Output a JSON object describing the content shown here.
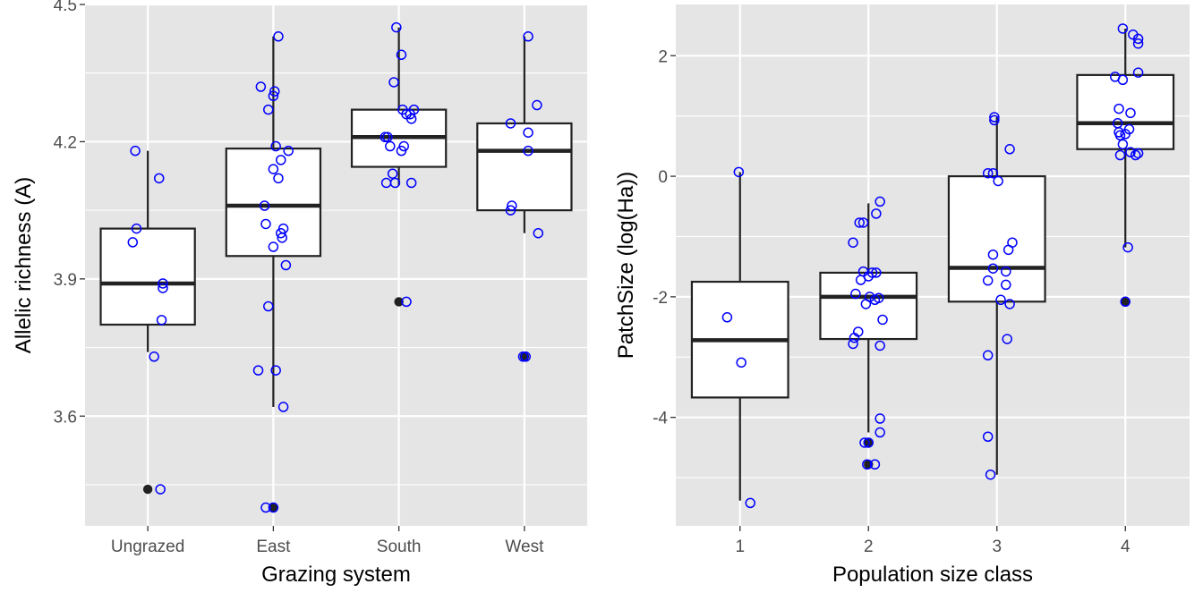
{
  "chart_data": [
    {
      "type": "box",
      "xlabel": "Grazing system",
      "ylabel": "Allelic richness (A)",
      "categories": [
        "Ungrazed",
        "East",
        "South",
        "West"
      ],
      "ylim": [
        3.36,
        4.5
      ],
      "yticks": [
        3.6,
        3.9,
        4.2,
        4.5
      ],
      "yticklabels": [
        "3.6",
        "3.9",
        "4.2",
        "4.5"
      ],
      "grid": true,
      "boxes": [
        {
          "category": "Ungrazed",
          "q1": 3.8,
          "median": 3.89,
          "q3": 4.01,
          "whisker_low": 3.74,
          "whisker_high": 4.18,
          "outliers": [
            3.44
          ]
        },
        {
          "category": "East",
          "q1": 3.95,
          "median": 4.06,
          "q3": 4.185,
          "whisker_low": 3.62,
          "whisker_high": 4.43,
          "outliers": [
            3.4
          ]
        },
        {
          "category": "South",
          "q1": 4.145,
          "median": 4.21,
          "q3": 4.27,
          "whisker_low": 4.105,
          "whisker_high": 4.45,
          "outliers": [
            3.85
          ]
        },
        {
          "category": "West",
          "q1": 4.05,
          "median": 4.18,
          "q3": 4.24,
          "whisker_low": 4.0,
          "whisker_high": 4.43,
          "outliers": [
            3.73
          ]
        }
      ],
      "points": [
        {
          "category": "Ungrazed",
          "values": [
            4.18,
            4.12,
            4.01,
            3.98,
            3.89,
            3.88,
            3.81,
            3.73,
            3.44
          ],
          "jitter": [
            -0.1,
            0.09,
            -0.09,
            -0.12,
            0.12,
            0.12,
            0.11,
            0.05,
            0.1
          ]
        },
        {
          "category": "East",
          "values": [
            4.43,
            4.32,
            4.31,
            4.3,
            4.27,
            4.19,
            4.18,
            4.16,
            4.14,
            4.12,
            4.06,
            4.02,
            4.01,
            4.0,
            3.99,
            3.97,
            3.93,
            3.84,
            3.7,
            3.7,
            3.62,
            3.4,
            3.4
          ],
          "jitter": [
            0.04,
            -0.1,
            0.01,
            0.0,
            -0.04,
            0.02,
            0.12,
            0.06,
            0.0,
            0.04,
            -0.07,
            -0.06,
            0.08,
            0.06,
            0.07,
            0.0,
            0.1,
            -0.04,
            -0.12,
            0.02,
            0.08,
            -0.06,
            0.0
          ]
        },
        {
          "category": "South",
          "values": [
            4.45,
            4.39,
            4.33,
            4.27,
            4.27,
            4.26,
            4.26,
            4.25,
            4.21,
            4.21,
            4.19,
            4.19,
            4.18,
            4.13,
            4.11,
            4.11,
            4.11,
            3.85
          ],
          "jitter": [
            -0.02,
            0.02,
            -0.04,
            0.12,
            0.03,
            0.06,
            0.09,
            0.1,
            -0.09,
            -0.11,
            -0.07,
            0.04,
            0.02,
            -0.05,
            -0.1,
            -0.03,
            0.1,
            0.06
          ]
        },
        {
          "category": "West",
          "values": [
            4.43,
            4.28,
            4.24,
            4.22,
            4.18,
            4.06,
            4.05,
            4.0,
            3.73,
            3.73
          ],
          "jitter": [
            0.03,
            0.1,
            -0.11,
            0.03,
            0.03,
            -0.1,
            -0.11,
            0.11,
            -0.01,
            0.01
          ]
        }
      ]
    },
    {
      "type": "box",
      "xlabel": "Population size class",
      "ylabel": "PatchSize (log(Ha))",
      "categories": [
        "1",
        "2",
        "3",
        "4"
      ],
      "ylim": [
        -5.8,
        2.85
      ],
      "yticks": [
        -4,
        -2,
        0,
        2
      ],
      "yticklabels": [
        "-4",
        "-2",
        "0",
        "2"
      ],
      "grid": true,
      "boxes": [
        {
          "category": "1",
          "q1": -3.67,
          "median": -2.72,
          "q3": -1.75,
          "whisker_low": -5.38,
          "whisker_high": 0.07,
          "outliers": []
        },
        {
          "category": "2",
          "q1": -2.7,
          "median": -2.0,
          "q3": -1.6,
          "whisker_low": -4.25,
          "whisker_high": -0.45,
          "outliers": [
            -4.42,
            -4.78
          ]
        },
        {
          "category": "3",
          "q1": -2.08,
          "median": -1.52,
          "q3": 0.0,
          "whisker_low": -4.95,
          "whisker_high": 0.98,
          "outliers": []
        },
        {
          "category": "4",
          "q1": 0.45,
          "median": 0.88,
          "q3": 1.68,
          "whisker_low": -1.18,
          "whisker_high": 2.45,
          "outliers": [
            -2.08
          ]
        }
      ],
      "points": [
        {
          "category": "1",
          "values": [
            0.07,
            -2.34,
            -3.09,
            -5.42
          ],
          "jitter": [
            -0.01,
            -0.1,
            0.01,
            0.08
          ]
        },
        {
          "category": "2",
          "values": [
            -0.42,
            -0.62,
            -0.77,
            -0.77,
            -1.1,
            -1.58,
            -1.6,
            -1.6,
            -1.66,
            -1.72,
            -1.95,
            -2.0,
            -2.02,
            -2.05,
            -2.12,
            -2.38,
            -2.58,
            -2.68,
            -2.78,
            -2.81,
            -4.02,
            -4.25,
            -4.42,
            -4.42,
            -4.78,
            -4.78
          ],
          "jitter": [
            0.09,
            0.06,
            -0.07,
            -0.04,
            -0.12,
            -0.04,
            0.03,
            0.06,
            0.0,
            -0.06,
            -0.1,
            0.01,
            0.08,
            0.05,
            -0.02,
            0.11,
            -0.08,
            -0.11,
            -0.12,
            0.09,
            0.09,
            0.09,
            -0.03,
            0.0,
            -0.01,
            0.05
          ]
        },
        {
          "category": "3",
          "values": [
            0.98,
            0.93,
            0.45,
            0.05,
            0.05,
            -0.08,
            -1.1,
            -1.22,
            -1.3,
            -1.53,
            -1.58,
            -1.73,
            -1.8,
            -2.05,
            -2.12,
            -2.7,
            -2.97,
            -4.32,
            -4.95
          ],
          "jitter": [
            -0.02,
            -0.02,
            0.1,
            -0.07,
            -0.03,
            0.01,
            0.12,
            0.09,
            -0.03,
            -0.03,
            0.07,
            -0.07,
            0.07,
            0.03,
            0.1,
            0.08,
            -0.07,
            -0.07,
            -0.05
          ]
        },
        {
          "category": "4",
          "values": [
            2.45,
            2.35,
            2.28,
            2.2,
            1.72,
            1.65,
            1.6,
            1.12,
            1.05,
            0.88,
            0.78,
            0.73,
            0.7,
            0.68,
            0.53,
            0.4,
            0.38,
            0.35,
            0.35,
            -1.18,
            -2.08
          ],
          "jitter": [
            -0.02,
            0.06,
            0.1,
            0.1,
            0.1,
            -0.08,
            -0.02,
            -0.05,
            0.04,
            -0.06,
            0.03,
            -0.05,
            0.0,
            -0.04,
            -0.02,
            0.04,
            0.1,
            -0.04,
            0.08,
            0.02,
            0.0
          ]
        }
      ]
    }
  ],
  "colors": {
    "panel_bg": "#e5e5e5",
    "grid": "#ffffff",
    "box_line": "#222222",
    "box_fill": "#ffffff",
    "point_stroke": "#0000ff",
    "outlier": "#222222",
    "tick_text": "#4d4d4d",
    "title_text": "#000000"
  }
}
